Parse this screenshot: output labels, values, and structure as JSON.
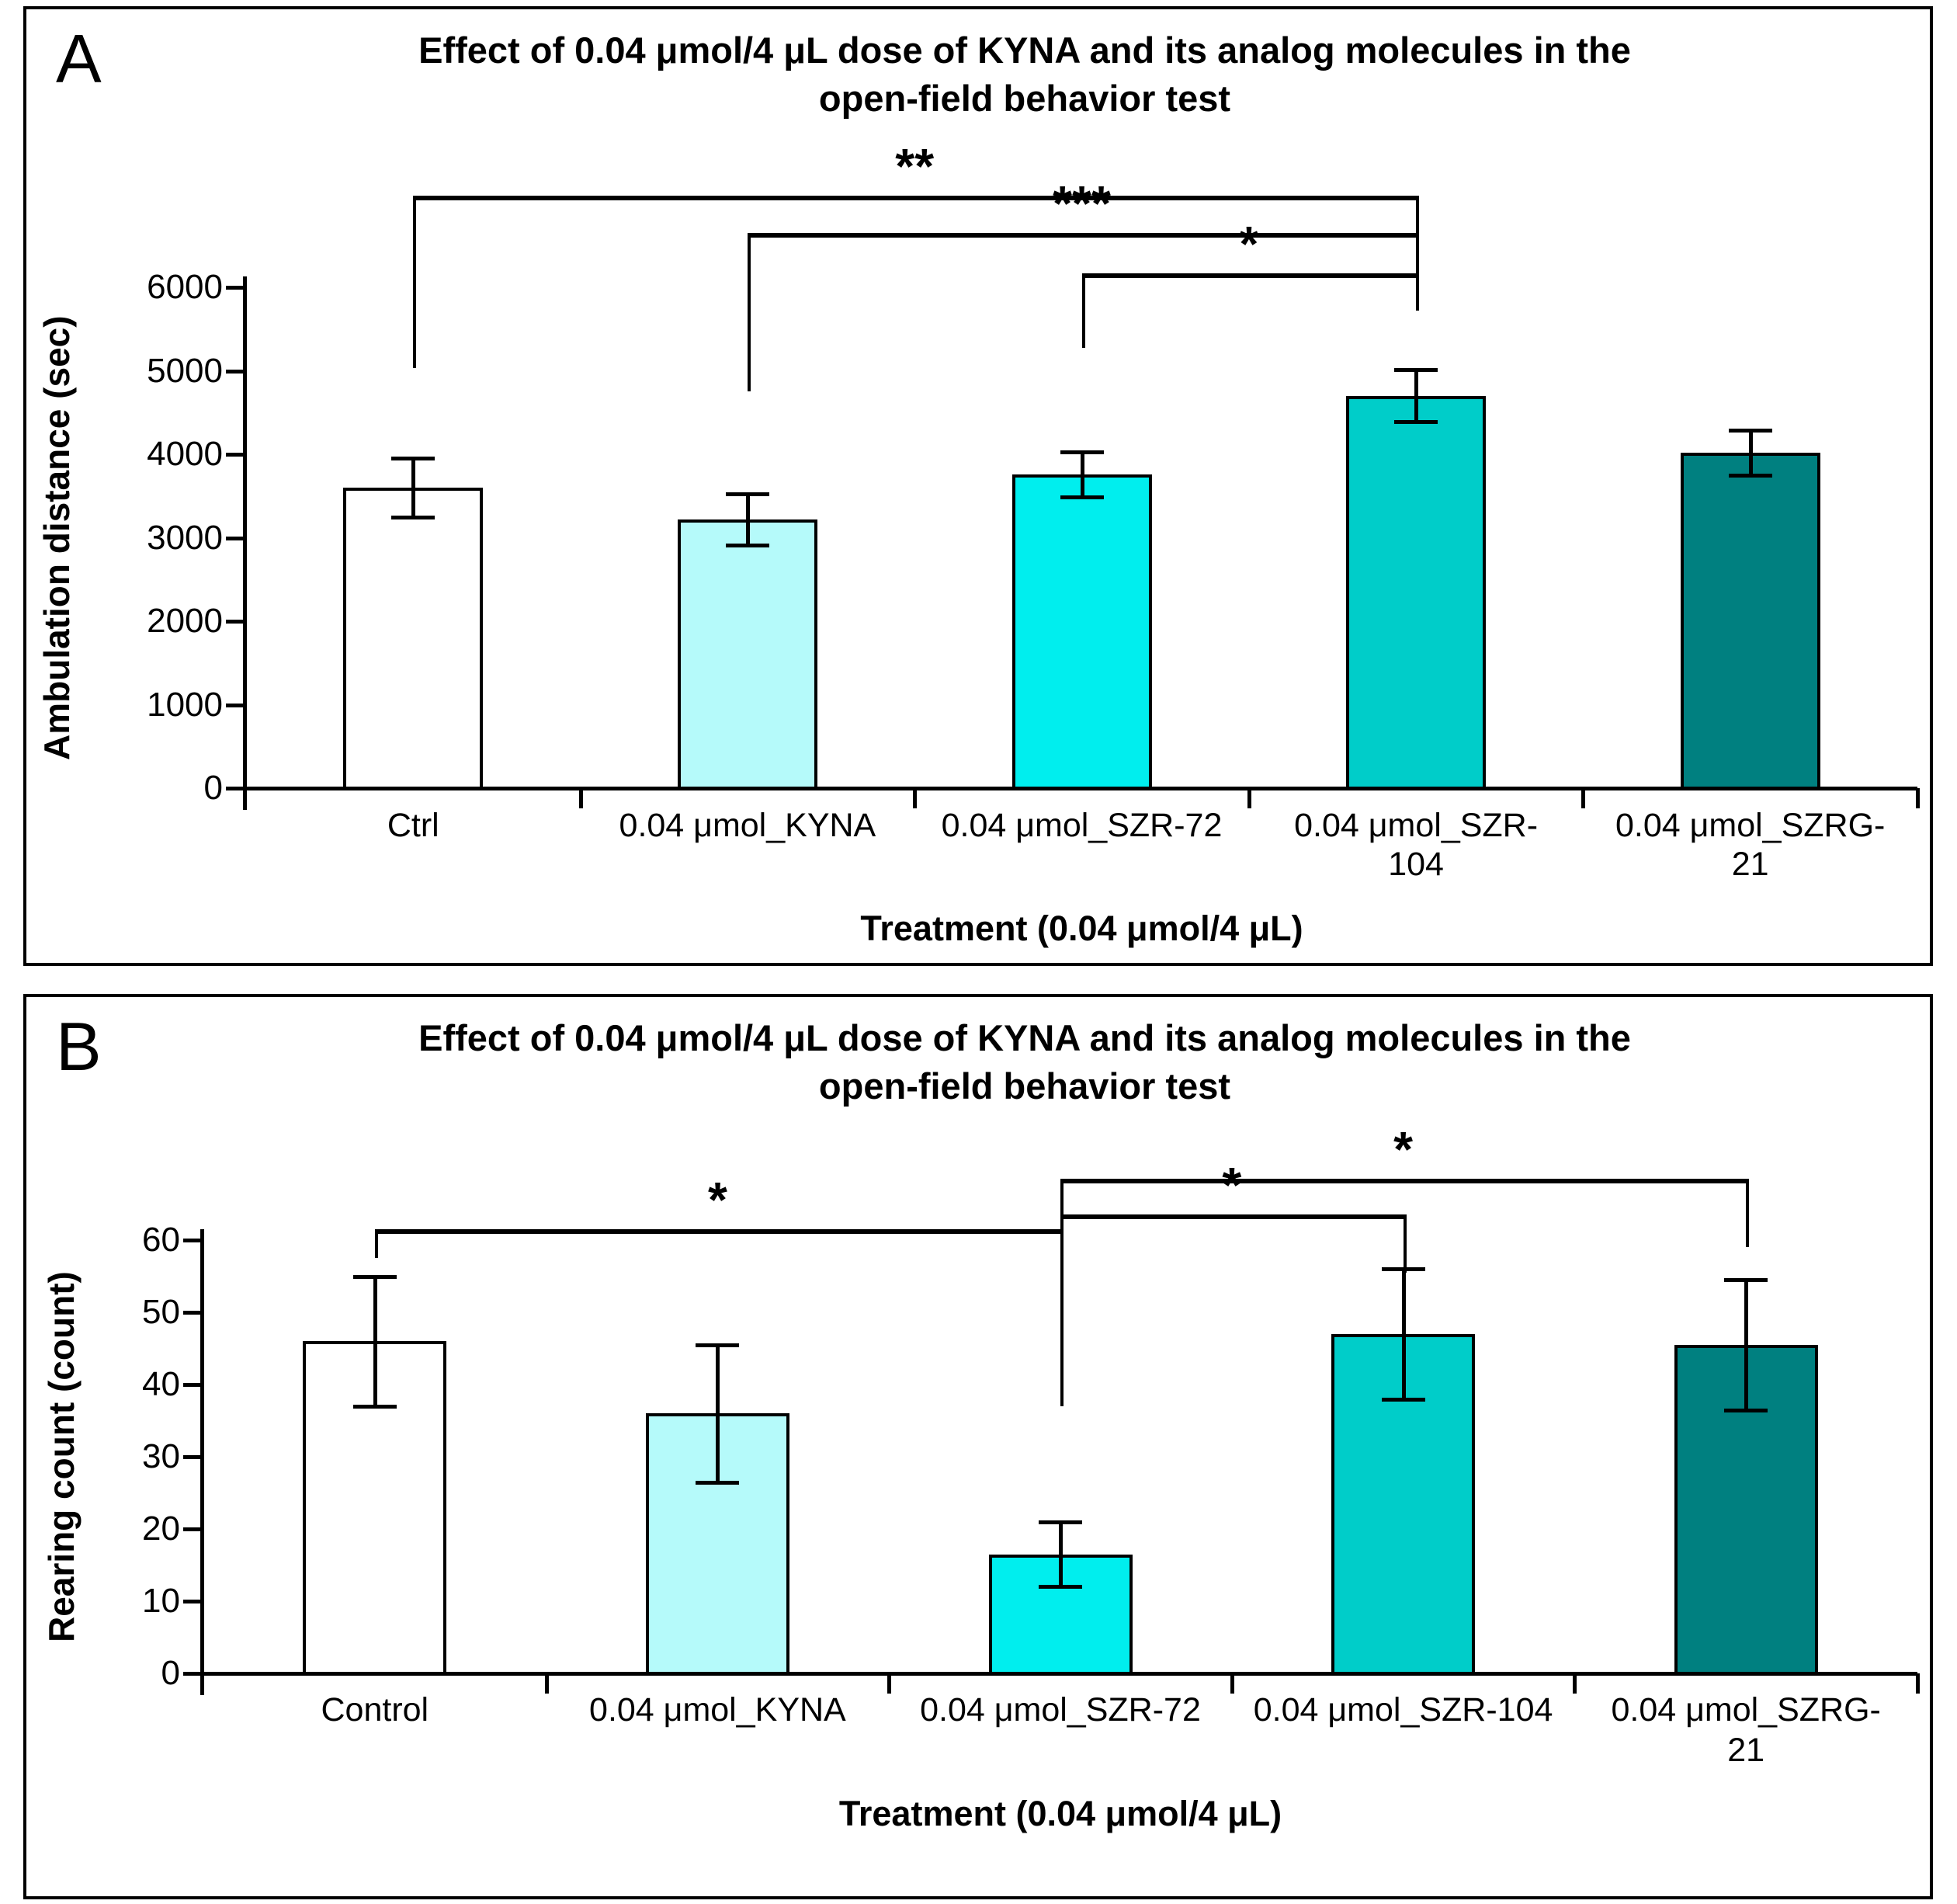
{
  "figure_background": "#ffffff",
  "panel_border_color": "#000000",
  "panels": [
    {
      "panel_label": "A",
      "title_lines": [
        "Effect of 0.04 μmol/4 μL dose of KYNA and its analog molecules in the",
        "open-field behavior test"
      ],
      "chart_data": {
        "type": "bar",
        "title": "Effect of 0.04 μmol/4 μL dose of KYNA and its analog molecules in the open-field behavior test",
        "xlabel": "Treatment (0.04 μmol/4 μL)",
        "ylabel": "Ambulation distance (sec)",
        "ylim": [
          0,
          6000
        ],
        "ytick_step": 1000,
        "ytick_labels": [
          "0",
          "1000",
          "2000",
          "3000",
          "4000",
          "5000",
          "6000"
        ],
        "grid": false,
        "legend": "none",
        "categories": [
          "Ctrl",
          "0.04 μmol_KYNA",
          "0.04 μmol_SZR-72",
          "0.04 μmol_SZR-104",
          "0.04 μmol_SZRG-21"
        ],
        "category_label_lines": [
          [
            "Ctrl"
          ],
          [
            "0.04 μmol_KYNA"
          ],
          [
            "0.04 μmol_SZR-72"
          ],
          [
            "0.04 μmol_SZR-",
            "104"
          ],
          [
            "0.04 μmol_SZRG-",
            "21"
          ]
        ],
        "values": [
          3600,
          3220,
          3760,
          4700,
          4020
        ],
        "errors": [
          350,
          310,
          270,
          310,
          270
        ],
        "bar_colors": [
          "#FFFFFF",
          "#B5FAFA",
          "#00EEEE",
          "#00CDC9",
          "#008080"
        ],
        "bar_border_color": "#000000",
        "significance": [
          {
            "label": "**",
            "from": 0,
            "to": 3,
            "y": 7100,
            "from_leg_end": 5030,
            "to_leg_end": 5720
          },
          {
            "label": "***",
            "from": 1,
            "to": 3,
            "y": 6650,
            "from_leg_end": 4750,
            "to_leg_end": 5720
          },
          {
            "label": "*",
            "from": 2,
            "to": 3,
            "y": 6170,
            "from_leg_end": 5270,
            "to_leg_end": 5720
          }
        ]
      }
    },
    {
      "panel_label": "B",
      "title_lines": [
        "Effect of 0.04 μmol/4 μL dose of KYNA and its analog molecules in the",
        "open-field behavior test"
      ],
      "chart_data": {
        "type": "bar",
        "title": "Effect of 0.04 μmol/4 μL dose of KYNA and its analog molecules in the open-field behavior test",
        "xlabel": "Treatment (0.04 μmol/4 μL)",
        "ylabel": "Rearing count (count)",
        "ylim": [
          0,
          60
        ],
        "ytick_step": 10,
        "ytick_labels": [
          "0",
          "10",
          "20",
          "30",
          "40",
          "50",
          "60"
        ],
        "grid": false,
        "legend": "none",
        "categories": [
          "Control",
          "0.04 μmol_KYNA",
          "0.04 μmol_SZR-72",
          "0.04 μmol_SZR-104",
          "0.04 μmol_SZRG-21"
        ],
        "category_label_lines": [
          [
            "Control"
          ],
          [
            "0.04 μmol_KYNA"
          ],
          [
            "0.04 μmol_SZR-72"
          ],
          [
            "0.04 μmol_SZR-104"
          ],
          [
            "0.04 μmol_SZRG-",
            "21"
          ]
        ],
        "values": [
          46,
          36,
          16.5,
          47,
          45.5
        ],
        "errors": [
          9,
          9.5,
          4.5,
          9,
          9
        ],
        "bar_colors": [
          "#FFFFFF",
          "#B5FAFA",
          "#00EEEE",
          "#00CDC9",
          "#008080"
        ],
        "bar_border_color": "#000000",
        "significance": [
          {
            "label": "*",
            "from": 0,
            "to": 2,
            "y": 61.5,
            "from_leg_end": 57.5,
            "to_leg_end": 37
          },
          {
            "label": "*",
            "from": 2,
            "to": 3,
            "y": 63.5,
            "from_leg_end": 37,
            "to_leg_end": 55.5
          },
          {
            "label": "*",
            "from": 2,
            "to": 4,
            "y": 68.5,
            "from_leg_end": 37,
            "to_leg_end": 59
          }
        ]
      }
    }
  ]
}
